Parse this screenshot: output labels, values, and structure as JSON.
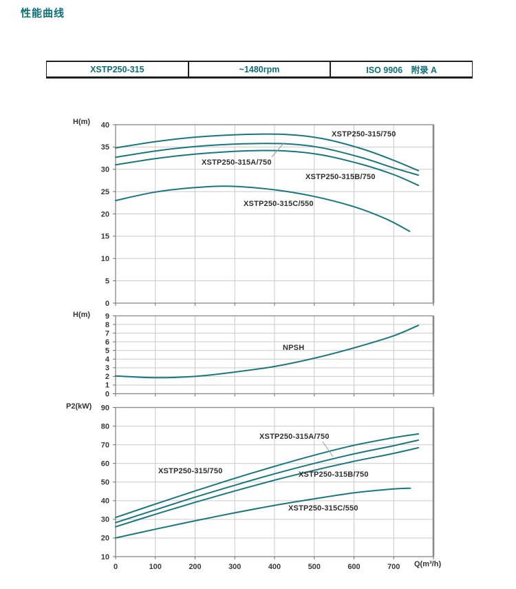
{
  "page": {
    "title": "性能曲线",
    "accent_color": "#0d6e76",
    "curve_color": "#17777f",
    "grid_color": "#c9c9c9",
    "border_color": "#8f8f8f",
    "tick_text_color": "#383838"
  },
  "header": {
    "cells": [
      "XSTP250-315",
      "~1480rpm",
      "ISO 9906　附录 A"
    ]
  },
  "chart_data": [
    {
      "type": "line",
      "title": "Head curves",
      "ylabel": "H(m)",
      "ylim": [
        0,
        40
      ],
      "ytick_step": 5,
      "xlim": [
        0,
        800
      ],
      "xtick_step": 100,
      "grid": true,
      "legend_position": "inline-labels",
      "series": [
        {
          "name": "XSTP250-315/750",
          "points": [
            [
              0,
              34.8
            ],
            [
              100,
              36.2
            ],
            [
              200,
              37.2
            ],
            [
              320,
              37.8
            ],
            [
              430,
              37.8
            ],
            [
              520,
              36.9
            ],
            [
              620,
              34.6
            ],
            [
              700,
              32.0
            ],
            [
              762,
              29.7
            ]
          ]
        },
        {
          "name": "XSTP250-315A/750",
          "points": [
            [
              0,
              32.7
            ],
            [
              100,
              34.1
            ],
            [
              200,
              35.1
            ],
            [
              320,
              35.7
            ],
            [
              430,
              35.7
            ],
            [
              520,
              34.8
            ],
            [
              620,
              32.6
            ],
            [
              700,
              30.3
            ],
            [
              762,
              28.7
            ]
          ]
        },
        {
          "name": "XSTP250-315B/750",
          "points": [
            [
              0,
              31.0
            ],
            [
              100,
              32.4
            ],
            [
              200,
              33.4
            ],
            [
              320,
              34.1
            ],
            [
              430,
              34.1
            ],
            [
              520,
              33.2
            ],
            [
              620,
              31.1
            ],
            [
              700,
              28.8
            ],
            [
              762,
              26.4
            ]
          ]
        },
        {
          "name": "XSTP250-315C/550",
          "points": [
            [
              0,
              23.0
            ],
            [
              100,
              24.9
            ],
            [
              200,
              25.9
            ],
            [
              290,
              26.2
            ],
            [
              400,
              25.4
            ],
            [
              500,
              23.9
            ],
            [
              600,
              21.6
            ],
            [
              680,
              18.9
            ],
            [
              740,
              16.1
            ]
          ]
        }
      ]
    },
    {
      "type": "line",
      "title": "NPSH curve",
      "ylabel": "H(m)",
      "ylim": [
        0,
        9
      ],
      "ytick_step": 1,
      "xlim": [
        0,
        800
      ],
      "xtick_step": 100,
      "grid": true,
      "legend_position": "inline-labels",
      "series": [
        {
          "name": "NPSH",
          "points": [
            [
              0,
              2.05
            ],
            [
              100,
              1.85
            ],
            [
              200,
              2.0
            ],
            [
              300,
              2.5
            ],
            [
              400,
              3.15
            ],
            [
              500,
              4.1
            ],
            [
              600,
              5.3
            ],
            [
              700,
              6.7
            ],
            [
              762,
              7.9
            ]
          ]
        }
      ]
    },
    {
      "type": "line",
      "title": "Shaft power curves",
      "ylabel": "P2(kW)",
      "xlabel": "Q(m³/h)",
      "ylim": [
        10,
        90
      ],
      "ytick_step": 10,
      "xlim": [
        0,
        800
      ],
      "xtick_step": 100,
      "xtick_labels": [
        0,
        100,
        200,
        300,
        400,
        500,
        600,
        700
      ],
      "grid": true,
      "legend_position": "inline-labels",
      "series": [
        {
          "name": "XSTP250-315/750",
          "points": [
            [
              0,
              31.0
            ],
            [
              100,
              38.2
            ],
            [
              200,
              45.2
            ],
            [
              300,
              52.0
            ],
            [
              400,
              58.4
            ],
            [
              500,
              64.4
            ],
            [
              600,
              69.7
            ],
            [
              700,
              73.8
            ],
            [
              762,
              75.8
            ]
          ]
        },
        {
          "name": "XSTP250-315A/750",
          "points": [
            [
              0,
              28.2
            ],
            [
              100,
              35.1
            ],
            [
              200,
              41.9
            ],
            [
              300,
              48.3
            ],
            [
              400,
              54.4
            ],
            [
              500,
              60.0
            ],
            [
              600,
              65.1
            ],
            [
              700,
              69.5
            ],
            [
              762,
              72.5
            ]
          ]
        },
        {
          "name": "XSTP250-315B/750",
          "points": [
            [
              0,
              26.0
            ],
            [
              100,
              32.7
            ],
            [
              200,
              39.1
            ],
            [
              300,
              45.2
            ],
            [
              400,
              51.0
            ],
            [
              500,
              56.3
            ],
            [
              600,
              61.1
            ],
            [
              700,
              65.4
            ],
            [
              762,
              68.4
            ]
          ]
        },
        {
          "name": "XSTP250-315C/550",
          "points": [
            [
              0,
              20.0
            ],
            [
              100,
              24.7
            ],
            [
              200,
              29.2
            ],
            [
              300,
              33.5
            ],
            [
              400,
              37.5
            ],
            [
              500,
              41.0
            ],
            [
              600,
              44.2
            ],
            [
              700,
              46.3
            ],
            [
              742,
              46.7
            ]
          ]
        }
      ]
    }
  ]
}
